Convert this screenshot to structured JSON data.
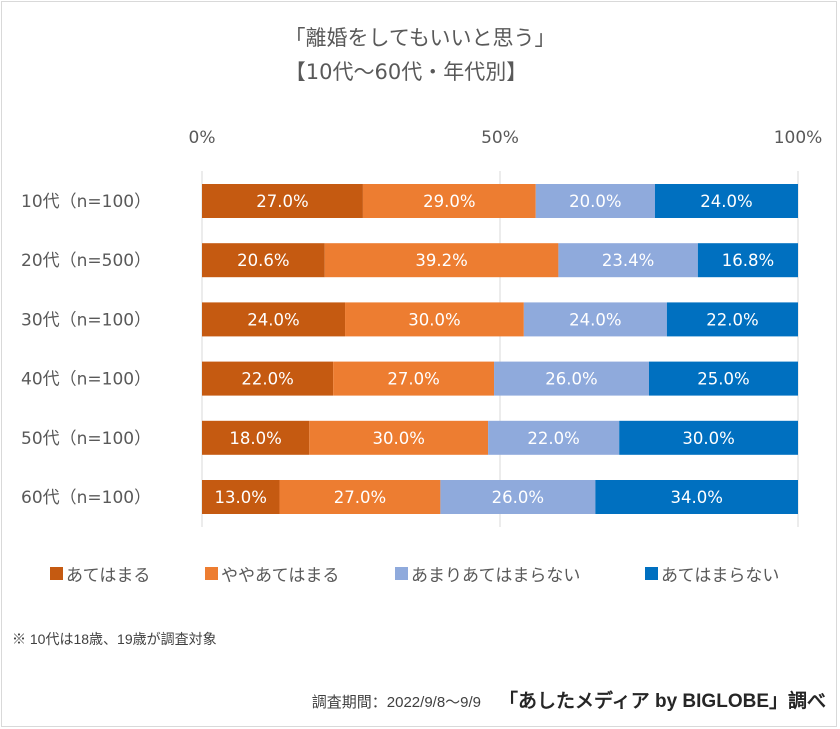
{
  "chart_data": {
    "type": "bar",
    "orientation": "horizontal",
    "stacked": "percent",
    "title": "「離婚をしてもいいと思う」",
    "subtitle": "【10代～60代・年代別】",
    "xlabel": "",
    "ylabel": "",
    "xlim": [
      0,
      100
    ],
    "x_ticks": [
      "0%",
      "50%",
      "100%"
    ],
    "x_tick_values": [
      0,
      50,
      100
    ],
    "grid": true,
    "legend_position": "bottom",
    "categories": [
      "10代（n=100）",
      "20代（n=500）",
      "30代（n=100）",
      "40代（n=100）",
      "50代（n=100）",
      "60代（n=100）"
    ],
    "series": [
      {
        "name": "あてはまる",
        "color": "#C55A11",
        "values": [
          27.0,
          20.6,
          24.0,
          22.0,
          18.0,
          13.0
        ],
        "labels": [
          "27.0%",
          "20.6%",
          "24.0%",
          "22.0%",
          "18.0%",
          "13.0%"
        ]
      },
      {
        "name": "ややあてはまる",
        "color": "#ED7D31",
        "values": [
          29.0,
          39.2,
          30.0,
          27.0,
          30.0,
          27.0
        ],
        "labels": [
          "29.0%",
          "39.2%",
          "30.0%",
          "27.0%",
          "30.0%",
          "27.0%"
        ]
      },
      {
        "name": "あまりあてはまらない",
        "color": "#8FAADC",
        "values": [
          20.0,
          23.4,
          24.0,
          26.0,
          22.0,
          26.0
        ],
        "labels": [
          "20.0%",
          "23.4%",
          "24.0%",
          "26.0%",
          "22.0%",
          "26.0%"
        ]
      },
      {
        "name": "あてはまらない",
        "color": "#0070C0",
        "values": [
          24.0,
          16.8,
          22.0,
          25.0,
          30.0,
          34.0
        ],
        "labels": [
          "24.0%",
          "16.8%",
          "22.0%",
          "25.0%",
          "30.0%",
          "34.0%"
        ]
      }
    ]
  },
  "header": {
    "title_line1": "「離婚をしてもいいと思う」",
    "title_line2": "【10代～60代・年代別】"
  },
  "legend": {
    "items": [
      {
        "label": "あてはまる",
        "color": "#C55A11"
      },
      {
        "label": "ややあてはまる",
        "color": "#ED7D31"
      },
      {
        "label": "あまりあてはまらない",
        "color": "#8FAADC"
      },
      {
        "label": "あてはまらない",
        "color": "#0070C0"
      }
    ]
  },
  "footer": {
    "note": "※ 10代は18歳、19歳が調査対象",
    "period": "調査期間：2022/9/8～9/9",
    "source": "「あしたメディア by BIGLOBE」調べ"
  }
}
